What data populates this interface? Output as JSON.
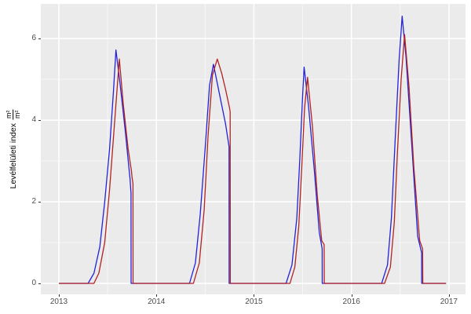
{
  "figure": {
    "background_color": "#FFFFFF",
    "panel_background_color": "#EBEBEB",
    "grid_major_color": "#FFFFFF",
    "grid_minor_color": "rgba(255,255,255,0.55)",
    "tick_mark_color": "#333333",
    "tick_label_color": "#4D4D4D",
    "y_axis_title_text": "Levélfelületi index",
    "y_axis_unit_numerator": "m²",
    "y_axis_unit_denominator": "m²"
  },
  "chart_data": {
    "type": "line",
    "title": "",
    "xlabel": "",
    "ylabel": "Levélfelületi index m²/m²",
    "xlim": [
      2012.815,
      2017.17
    ],
    "ylim": [
      -0.27,
      6.85
    ],
    "x_breaks": [
      2013,
      2014,
      2015,
      2016,
      2017
    ],
    "x_tick_labels": [
      "2013",
      "2014",
      "2015",
      "2016",
      "2017"
    ],
    "x_minor_breaks": [
      2013.5,
      2014.5,
      2015.5,
      2016.5
    ],
    "y_breaks": [
      0,
      2,
      4,
      6
    ],
    "y_tick_labels": [
      "0",
      "2",
      "4",
      "6"
    ],
    "y_minor_breaks": [
      1,
      3,
      5
    ],
    "grid": true,
    "legend": "none",
    "series": [
      {
        "name": "blue",
        "color": "#2222DD",
        "points": [
          [
            2013.0,
            0
          ],
          [
            2013.3,
            0
          ],
          [
            2013.36,
            0.25
          ],
          [
            2013.42,
            0.9
          ],
          [
            2013.47,
            2.0
          ],
          [
            2013.52,
            3.3
          ],
          [
            2013.56,
            4.7
          ],
          [
            2013.585,
            5.72
          ],
          [
            2013.63,
            4.85
          ],
          [
            2013.68,
            3.75
          ],
          [
            2013.73,
            2.55
          ],
          [
            2013.74,
            2.2
          ],
          [
            2013.741,
            0
          ],
          [
            2014.34,
            0
          ],
          [
            2014.4,
            0.5
          ],
          [
            2014.45,
            1.7
          ],
          [
            2014.5,
            3.3
          ],
          [
            2014.545,
            4.85
          ],
          [
            2014.585,
            5.37
          ],
          [
            2014.65,
            4.6
          ],
          [
            2014.71,
            3.9
          ],
          [
            2014.745,
            3.35
          ],
          [
            2014.746,
            0
          ],
          [
            2015.33,
            0
          ],
          [
            2015.39,
            0.45
          ],
          [
            2015.44,
            1.6
          ],
          [
            2015.47,
            3.0
          ],
          [
            2015.5,
            4.6
          ],
          [
            2015.515,
            5.3
          ],
          [
            2015.56,
            4.35
          ],
          [
            2015.62,
            2.75
          ],
          [
            2015.67,
            1.25
          ],
          [
            2015.7,
            0.85
          ],
          [
            2015.701,
            0
          ],
          [
            2016.31,
            0
          ],
          [
            2016.37,
            0.45
          ],
          [
            2016.41,
            1.6
          ],
          [
            2016.45,
            3.6
          ],
          [
            2016.49,
            5.5
          ],
          [
            2016.52,
            6.55
          ],
          [
            2016.56,
            5.55
          ],
          [
            2016.62,
            3.35
          ],
          [
            2016.68,
            1.15
          ],
          [
            2016.72,
            0.75
          ],
          [
            2016.721,
            0
          ],
          [
            2016.97,
            0
          ]
        ]
      },
      {
        "name": "red",
        "color": "#B22222",
        "points": [
          [
            2013.0,
            0
          ],
          [
            2013.36,
            0
          ],
          [
            2013.41,
            0.25
          ],
          [
            2013.47,
            1.0
          ],
          [
            2013.52,
            2.3
          ],
          [
            2013.57,
            3.9
          ],
          [
            2013.62,
            5.5
          ],
          [
            2013.66,
            4.4
          ],
          [
            2013.71,
            3.3
          ],
          [
            2013.745,
            2.75
          ],
          [
            2013.75,
            2.6
          ],
          [
            2013.76,
            2.45
          ],
          [
            2013.761,
            0
          ],
          [
            2014.38,
            0
          ],
          [
            2014.44,
            0.5
          ],
          [
            2014.49,
            1.8
          ],
          [
            2014.53,
            3.6
          ],
          [
            2014.575,
            5.1
          ],
          [
            2014.625,
            5.5
          ],
          [
            2014.67,
            5.15
          ],
          [
            2014.71,
            4.75
          ],
          [
            2014.75,
            4.3
          ],
          [
            2014.757,
            4.2
          ],
          [
            2014.758,
            0
          ],
          [
            2015.37,
            0
          ],
          [
            2015.42,
            0.4
          ],
          [
            2015.46,
            1.4
          ],
          [
            2015.49,
            2.8
          ],
          [
            2015.52,
            4.3
          ],
          [
            2015.55,
            5.05
          ],
          [
            2015.6,
            3.85
          ],
          [
            2015.65,
            2.15
          ],
          [
            2015.695,
            1.05
          ],
          [
            2015.72,
            0.95
          ],
          [
            2015.722,
            0
          ],
          [
            2016.34,
            0
          ],
          [
            2016.4,
            0.4
          ],
          [
            2016.44,
            1.5
          ],
          [
            2016.47,
            3.1
          ],
          [
            2016.51,
            5.0
          ],
          [
            2016.545,
            6.1
          ],
          [
            2016.59,
            4.85
          ],
          [
            2016.64,
            2.85
          ],
          [
            2016.7,
            1.05
          ],
          [
            2016.73,
            0.85
          ],
          [
            2016.732,
            0
          ],
          [
            2016.97,
            0
          ]
        ]
      }
    ]
  }
}
